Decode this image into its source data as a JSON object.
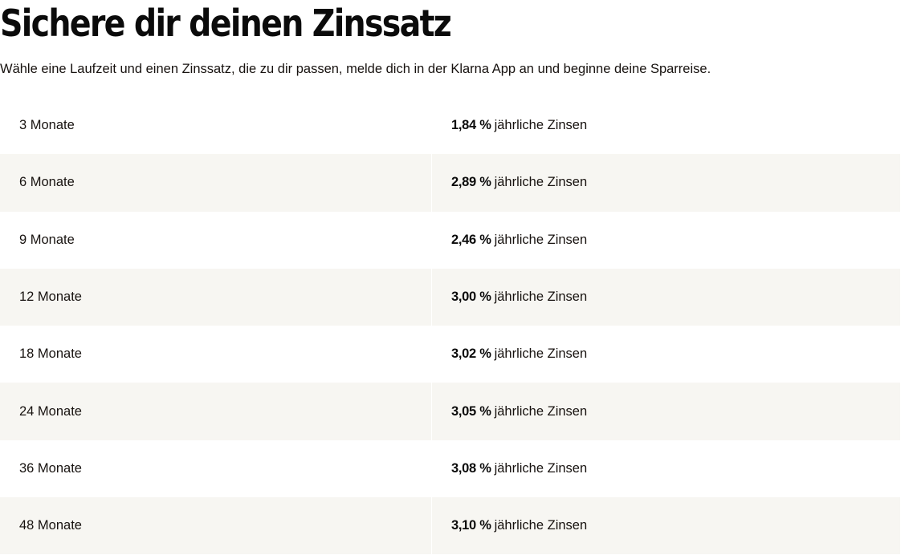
{
  "heading": {
    "title": "Sichere dir deinen Zinssatz",
    "description": "Wähle eine Laufzeit und einen Zinssatz, die zu dir passen, melde dich in der Klarna App an und beginne deine Sparreise."
  },
  "rates": [
    {
      "term": "3 Monate",
      "rate": "1,84 %",
      "suffix": "jährliche Zinsen"
    },
    {
      "term": "6 Monate",
      "rate": "2,89 %",
      "suffix": "jährliche Zinsen"
    },
    {
      "term": "9 Monate",
      "rate": "2,46 %",
      "suffix": "jährliche Zinsen"
    },
    {
      "term": "12 Monate",
      "rate": "3,00 %",
      "suffix": "jährliche Zinsen"
    },
    {
      "term": "18 Monate",
      "rate": "3,02 %",
      "suffix": "jährliche Zinsen"
    },
    {
      "term": "24 Monate",
      "rate": "3,05 %",
      "suffix": "jährliche Zinsen"
    },
    {
      "term": "36 Monate",
      "rate": "3,08 %",
      "suffix": "jährliche Zinsen"
    },
    {
      "term": "48 Monate",
      "rate": "3,10 %",
      "suffix": "jährliche Zinsen"
    }
  ],
  "colors": {
    "text": "#17120f",
    "row_alternate_background": "#f7f6f2",
    "background": "#ffffff"
  }
}
